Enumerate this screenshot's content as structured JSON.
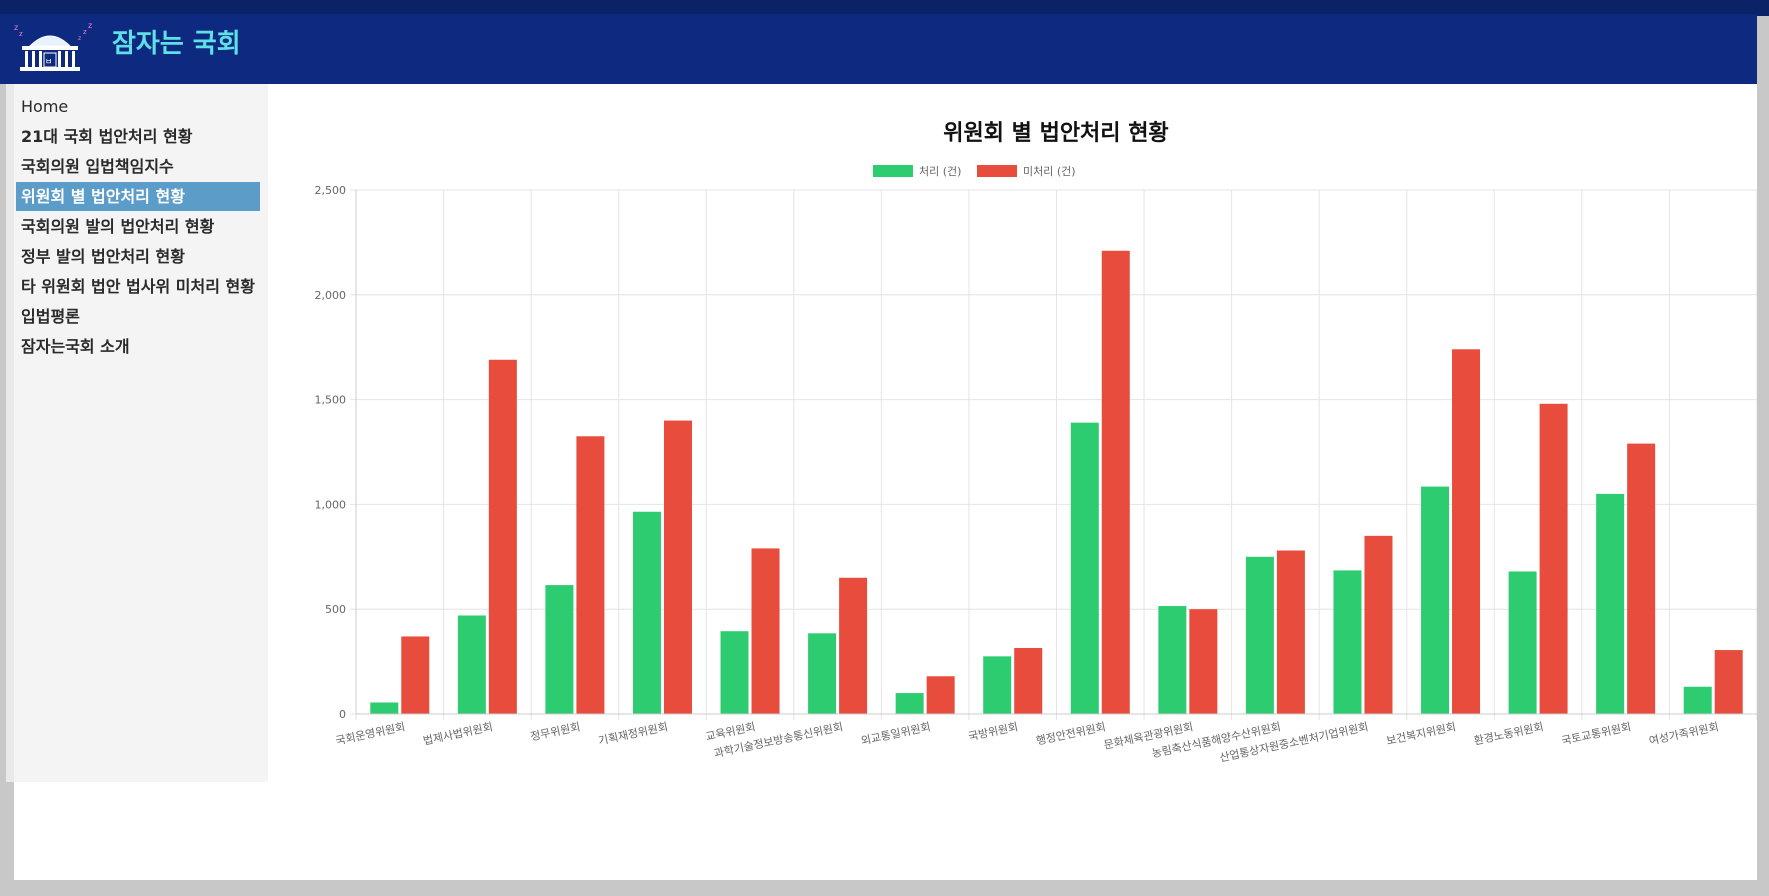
{
  "app": {
    "title": "잠자는 국회"
  },
  "sidebar": {
    "items": [
      {
        "label": "Home",
        "active": false
      },
      {
        "label": "21대 국회 법안처리 현황",
        "active": false
      },
      {
        "label": "국회의원 입법책임지수",
        "active": false
      },
      {
        "label": "위원회 별 법안처리 현황",
        "active": true
      },
      {
        "label": "국회의원 발의 법안처리 현황",
        "active": false
      },
      {
        "label": "정부 발의 법안처리 현황",
        "active": false
      },
      {
        "label": "타 위원회 법안 법사위 미처리 현황",
        "active": false
      },
      {
        "label": "입법평론",
        "active": false
      },
      {
        "label": "잠자는국회 소개",
        "active": false
      }
    ]
  },
  "colors": {
    "header_bg": "#0d2a80",
    "brand_text": "#5fe0e6",
    "active_item": "#5b9cc9",
    "processed": "#2ecc71",
    "unprocessed": "#e74c3c"
  },
  "chart_data": {
    "type": "bar",
    "title": "위원회 별 법안처리 현황",
    "legend_position": "top",
    "grid": true,
    "ylim": [
      0,
      2500
    ],
    "yticks": [
      0,
      500,
      1000,
      1500,
      2000,
      2500
    ],
    "ytick_labels": [
      "0",
      "500",
      "1,000",
      "1,500",
      "2,000",
      "2,500"
    ],
    "categories": [
      "국회운영위원회",
      "법제사법위원회",
      "정무위원회",
      "기획재정위원회",
      "교육위원회",
      "과학기술정보방송통신위원회",
      "외교통일위원회",
      "국방위원회",
      "행정안전위원회",
      "문화체육관광위원회",
      "농림축산식품해양수산위원회",
      "산업통상자원중소벤처기업위원회",
      "보건복지위원회",
      "환경노동위원회",
      "국토교통위원회",
      "여성가족위원회"
    ],
    "series": [
      {
        "name": "처리 (건)",
        "color": "#2ecc71",
        "values": [
          55,
          470,
          615,
          965,
          395,
          385,
          100,
          275,
          1390,
          515,
          750,
          685,
          1085,
          680,
          1050,
          130
        ]
      },
      {
        "name": "미처리 (건)",
        "color": "#e74c3c",
        "values": [
          370,
          1690,
          1325,
          1400,
          790,
          650,
          180,
          315,
          2210,
          500,
          780,
          850,
          1740,
          1480,
          1290,
          305
        ]
      }
    ]
  }
}
